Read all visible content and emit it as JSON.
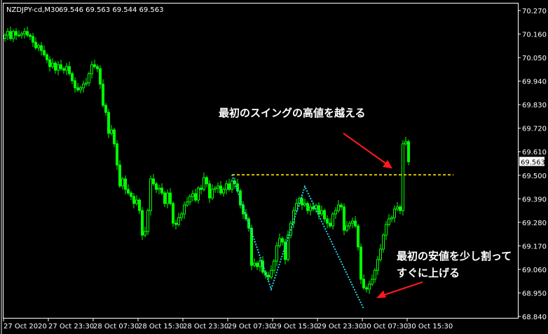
{
  "header": {
    "symbol": "NZDJPY-cd,M30",
    "ohlc": "69.546 69.563 69.544 69.563"
  },
  "colors": {
    "candle": "#00ff00",
    "background": "#000000",
    "grid_text": "#ffffff",
    "level_line": "#d4c000",
    "zigzag": "#27d3e6",
    "arrow": "#ff1a1a"
  },
  "chart_data": {
    "type": "candlestick",
    "title": "NZDJPY-cd,M30",
    "timeframe": "M30",
    "ylim": [
      68.84,
      70.27
    ],
    "yticks": [
      "70.270",
      "70.160",
      "70.050",
      "69.940",
      "69.830",
      "69.720",
      "69.610",
      "69.500",
      "69.390",
      "69.280",
      "69.170",
      "69.060",
      "68.950",
      "68.840"
    ],
    "xticks": [
      "27 Oct 2020",
      "27 Oct 23:30",
      "28 Oct 07:30",
      "28 Oct 15:30",
      "28 Oct 23:30",
      "29 Oct 07:30",
      "29 Oct 15:30",
      "29 Oct 23:30",
      "30 Oct 07:30",
      "30 Oct 15:30"
    ],
    "bars_per_xtick": 16,
    "current_price": "69.563",
    "first_open": 70.14,
    "closes": [
      70.155,
      70.172,
      70.139,
      70.172,
      70.155,
      70.155,
      70.162,
      70.172,
      70.155,
      70.149,
      70.122,
      70.096,
      70.106,
      70.083,
      70.063,
      70.04,
      70.008,
      70.024,
      69.991,
      70.017,
      69.998,
      69.991,
      70.008,
      69.975,
      69.942,
      69.909,
      69.899,
      69.909,
      69.926,
      69.932,
      69.975,
      70.017,
      70.008,
      69.998,
      69.926,
      69.827,
      69.794,
      69.696,
      69.712,
      69.647,
      69.548,
      69.45,
      69.483,
      69.434,
      69.417,
      69.401,
      69.368,
      69.384,
      69.335,
      69.22,
      69.237,
      69.335,
      69.483,
      69.46,
      69.434,
      69.44,
      69.417,
      69.368,
      69.417,
      69.368,
      69.276,
      69.27,
      69.302,
      69.319,
      69.361,
      69.375,
      69.401,
      69.414,
      69.384,
      69.44,
      69.434,
      69.489,
      69.46,
      69.394,
      69.434,
      69.44,
      69.45,
      69.417,
      69.434,
      69.46,
      69.434,
      69.473,
      69.46,
      69.427,
      69.361,
      69.319,
      69.296,
      69.253,
      69.079,
      69.089,
      69.073,
      69.099,
      69.047,
      69.033,
      69.024,
      69.056,
      69.099,
      69.171,
      69.204,
      69.188,
      69.106,
      69.22,
      69.276,
      69.335,
      69.368,
      69.391,
      69.361,
      69.368,
      69.335,
      69.352,
      69.342,
      69.358,
      69.319,
      69.335,
      69.296,
      69.276,
      69.263,
      69.319,
      69.335,
      69.361,
      69.352,
      69.243,
      69.263,
      69.276,
      69.286,
      69.263,
      69.165,
      69.014,
      68.974,
      68.968,
      68.991,
      69.014,
      69.056,
      69.106,
      69.155,
      69.22,
      69.27,
      69.296,
      69.302,
      69.342,
      69.352,
      69.335,
      69.647,
      69.657,
      69.563
    ],
    "level_line": {
      "price": 69.502,
      "from_bar": 81,
      "to_bar": 160
    },
    "zigzag": [
      {
        "bar": 81,
        "price": 69.502
      },
      {
        "bar": 95,
        "price": 68.968
      },
      {
        "bar": 107,
        "price": 69.447
      },
      {
        "bar": 128,
        "price": 68.876
      }
    ],
    "annotations": [
      {
        "text": "最初のスイングの高値を越える"
      },
      {
        "text": "最初の安値を少し割って"
      },
      {
        "text": "すぐに上げる"
      }
    ]
  }
}
